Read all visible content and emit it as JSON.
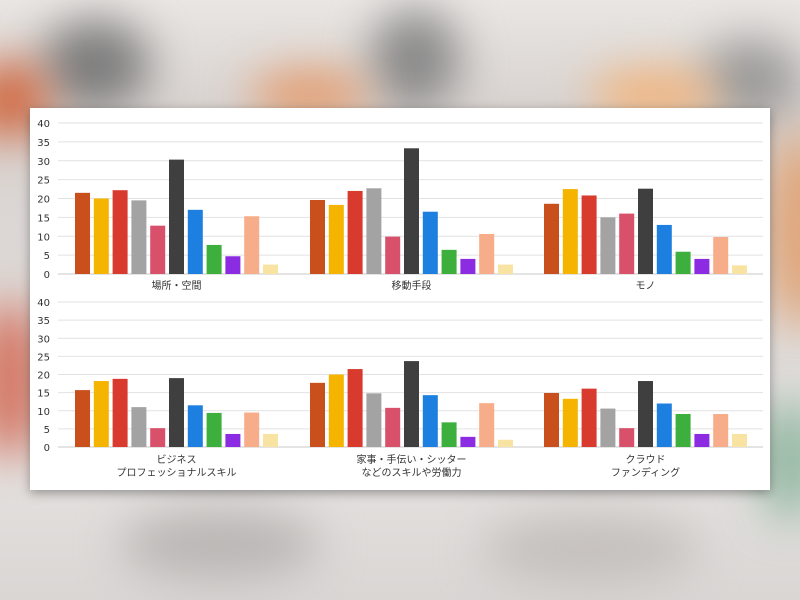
{
  "colors": [
    "#c9501c",
    "#f5b400",
    "#d93a2e",
    "#a3a3a3",
    "#d8506a",
    "#3f3f3f",
    "#1d7fe0",
    "#3caf3c",
    "#8b2be2",
    "#f7ad8a",
    "#f8e3a2"
  ],
  "chart_data": [
    {
      "type": "bar",
      "panel": "top",
      "ylim": [
        0,
        40
      ],
      "yticks": [
        "0",
        "5",
        "10",
        "15",
        "20",
        "25",
        "30",
        "35",
        "40"
      ],
      "grid": true,
      "groups": [
        {
          "label": [
            "場所・空間"
          ],
          "values": [
            21.5,
            20.0,
            22.2,
            19.5,
            12.8,
            30.3,
            17.0,
            7.7,
            4.7,
            15.3,
            2.5
          ]
        },
        {
          "label": [
            "移動手段"
          ],
          "values": [
            19.6,
            18.3,
            22.0,
            22.7,
            9.9,
            33.3,
            16.5,
            6.4,
            4.0,
            10.6,
            2.5
          ]
        },
        {
          "label": [
            "モノ"
          ],
          "values": [
            18.6,
            22.5,
            20.8,
            15.0,
            16.0,
            22.6,
            13.0,
            5.9,
            4.0,
            9.8,
            2.3
          ]
        }
      ]
    },
    {
      "type": "bar",
      "panel": "bottom",
      "ylim": [
        0,
        40
      ],
      "yticks": [
        "0",
        "5",
        "10",
        "15",
        "20",
        "25",
        "30",
        "35",
        "40"
      ],
      "grid": true,
      "groups": [
        {
          "label": [
            "ビジネス",
            "プロフェッショナルスキル"
          ],
          "values": [
            15.7,
            18.2,
            18.8,
            11.0,
            5.2,
            19.0,
            11.5,
            9.4,
            3.6,
            9.5,
            3.6
          ]
        },
        {
          "label": [
            "家事・手伝い・シッター",
            "などのスキルや労働力"
          ],
          "values": [
            17.7,
            20.0,
            21.5,
            14.8,
            10.8,
            23.7,
            14.3,
            6.8,
            2.8,
            12.1,
            2.0
          ]
        },
        {
          "label": [
            "クラウド",
            "ファンディング"
          ],
          "values": [
            14.9,
            13.3,
            16.1,
            10.6,
            5.2,
            18.2,
            12.0,
            9.1,
            3.6,
            9.1,
            3.6
          ]
        }
      ]
    }
  ]
}
